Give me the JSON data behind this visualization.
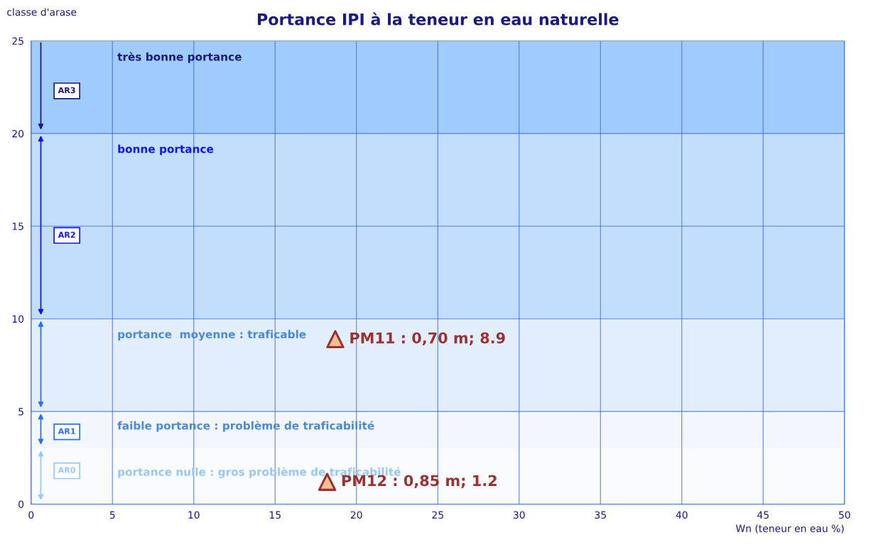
{
  "chart_data": {
    "type": "scatter",
    "title": "Portance IPI à la teneur en eau naturelle",
    "xlabel": "Wn (teneur en eau %)",
    "ylabel": "classe d'arase",
    "x": [
      18.7,
      18.2
    ],
    "series": [
      {
        "color": "#f9bf8f",
        "values": [
          8.9,
          1.2
        ]
      }
    ],
    "marker": "triangle",
    "xlim": [
      0,
      50
    ],
    "xticks": [
      0,
      5,
      10,
      15,
      20,
      25,
      30,
      35,
      40,
      45,
      50
    ],
    "ylim": [
      0,
      25
    ],
    "yticks": [
      0,
      5,
      10,
      15,
      20,
      25
    ],
    "grid": true,
    "legend": false,
    "bands": [
      {
        "axis": "y",
        "from": 20,
        "to": 25,
        "label": "très bonne portance",
        "color": "#a0ccfd"
      },
      {
        "axis": "y",
        "from": 10,
        "to": 20,
        "label": "bonne portance",
        "color": "#c3defd"
      },
      {
        "axis": "y",
        "from": 5,
        "to": 10,
        "label": "portance  moyenne : traficable",
        "color": "#e2eefd"
      },
      {
        "axis": "y",
        "from": 3,
        "to": 5,
        "label": "faible portance : problème de traficabilité",
        "color": "#f2f7fe"
      },
      {
        "axis": "y",
        "from": 0,
        "to": 3,
        "label": "portance nulle : gros problème de traficabilité",
        "color": "#f9fbff"
      }
    ],
    "annotations": [
      {
        "text": "PM11 : 0,70 m; 8.9",
        "x": 18.7,
        "y": 8.9
      },
      {
        "text": "PM12 : 0,85 m; 1.2",
        "x": 18.2,
        "y": 1.2
      },
      "AR3",
      "AR2",
      "AR1",
      "AR0"
    ]
  }
}
